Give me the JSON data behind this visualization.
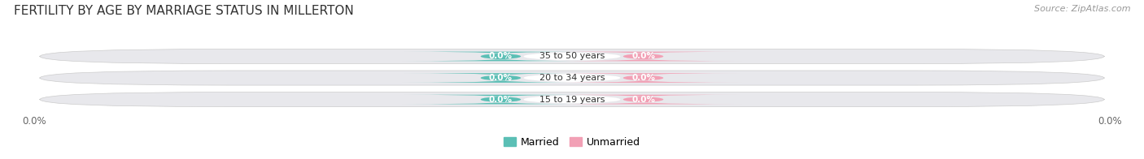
{
  "title": "Female Fertility by Age by Marriage Status in Millerton",
  "title_display": "FERTILITY BY AGE BY MARRIAGE STATUS IN MILLERTON",
  "source": "Source: ZipAtlas.com",
  "categories": [
    "15 to 19 years",
    "20 to 34 years",
    "35 to 50 years"
  ],
  "married_values": [
    0.0,
    0.0,
    0.0
  ],
  "unmarried_values": [
    0.0,
    0.0,
    0.0
  ],
  "married_color": "#5BBFB5",
  "unmarried_color": "#F2A0B5",
  "bar_bg_color": "#E8E8EC",
  "title_fontsize": 11,
  "label_fontsize": 8.5,
  "tick_fontsize": 8.5,
  "legend_labels": [
    "Married",
    "Unmarried"
  ],
  "x_tick_left": "0.0%",
  "x_tick_right": "0.0%"
}
